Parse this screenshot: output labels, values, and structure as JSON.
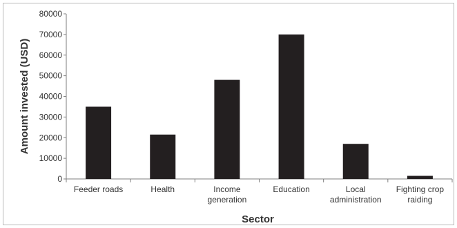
{
  "chart_data": {
    "type": "bar",
    "title": "",
    "xlabel": "Sector",
    "ylabel": "Amount invested (USD)",
    "ylim": [
      0,
      80000
    ],
    "yticks": [
      0,
      10000,
      20000,
      30000,
      40000,
      50000,
      60000,
      70000,
      80000
    ],
    "ytick_labels": [
      "0",
      "10000",
      "20000",
      "30000",
      "40000",
      "50000",
      "60000",
      "70000",
      "80000"
    ],
    "categories": [
      [
        "Feeder roads"
      ],
      [
        "Health"
      ],
      [
        "Income",
        "generation"
      ],
      [
        "Education"
      ],
      [
        "Local",
        "administration"
      ],
      [
        "Fighting crop",
        "raiding"
      ]
    ],
    "values": [
      35000,
      21500,
      48000,
      70000,
      17000,
      1500
    ],
    "bar_color": "#231f20",
    "grid": false,
    "legend": "none"
  }
}
